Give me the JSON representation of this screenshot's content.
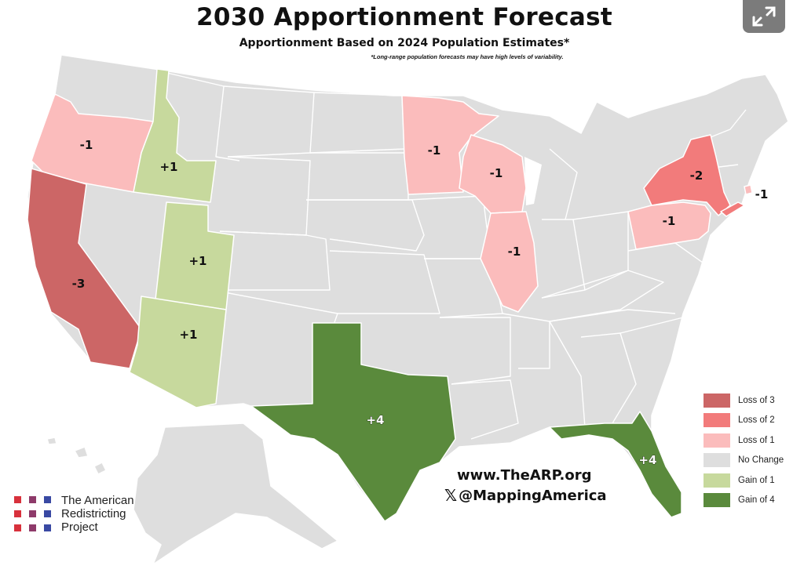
{
  "title": "2030 Apportionment Forecast",
  "subtitle": "Apportionment Based on 2024 Population Estimates*",
  "note": "*Long-range population forecasts may have high levels of variability.",
  "website": "www.TheARP.org",
  "social_prefix": "𝕏",
  "social_handle": "@MappingAmerica",
  "organization": {
    "lines": [
      "The American",
      "Redistricting",
      "Project"
    ]
  },
  "legend": [
    {
      "label": "Loss of 3",
      "color": "#cc6666"
    },
    {
      "label": "Loss of 2",
      "color": "#f27b7b"
    },
    {
      "label": "Loss of 1",
      "color": "#fbbcbc"
    },
    {
      "label": "No Change",
      "color": "#dedede"
    },
    {
      "label": "Gain of 1",
      "color": "#c7d99d"
    },
    {
      "label": "Gain of 4",
      "color": "#5a8a3c"
    }
  ],
  "states": {
    "oregon": {
      "change": "-1",
      "category": "Loss of 1"
    },
    "idaho": {
      "change": "+1",
      "category": "Gain of 1"
    },
    "california": {
      "change": "-3",
      "category": "Loss of 3"
    },
    "utah": {
      "change": "+1",
      "category": "Gain of 1"
    },
    "arizona": {
      "change": "+1",
      "category": "Gain of 1"
    },
    "texas": {
      "change": "+4",
      "category": "Gain of 4"
    },
    "minnesota": {
      "change": "-1",
      "category": "Loss of 1"
    },
    "wisconsin": {
      "change": "-1",
      "category": "Loss of 1"
    },
    "illinois": {
      "change": "-1",
      "category": "Loss of 1"
    },
    "new_york": {
      "change": "-2",
      "category": "Loss of 2"
    },
    "pennsylvania": {
      "change": "-1",
      "category": "Loss of 1"
    },
    "rhode_island": {
      "change": "-1",
      "category": "Loss of 1"
    },
    "florida": {
      "change": "+4",
      "category": "Gain of 4"
    }
  },
  "colors": {
    "no_change": "#dedede",
    "border": "#ffffff",
    "expand_button": "#7b7b7b",
    "org_dots": [
      "#d8313c",
      "#8e3a6a",
      "#3949a3"
    ]
  },
  "icons": {
    "expand": "expand-arrows-icon"
  }
}
